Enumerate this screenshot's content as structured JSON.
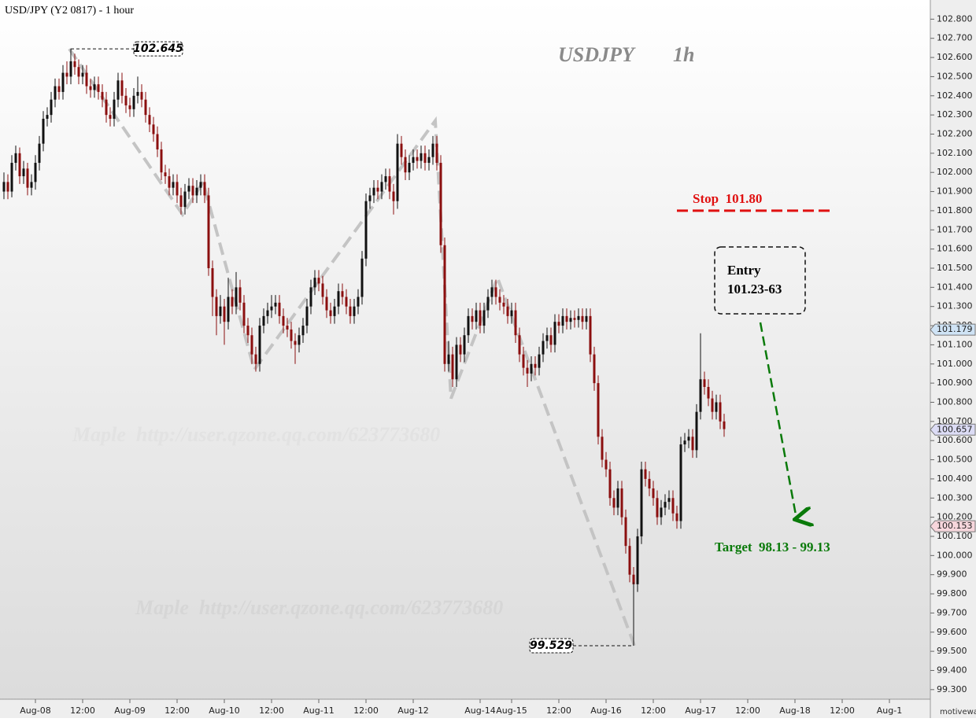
{
  "chart_data": {
    "type": "candlestick",
    "title": "USD/JPY (Y2 0817) - 1 hour",
    "watermark": [
      "USDJPY",
      "1h"
    ],
    "credit": "Maple  http://user.qzone.qq.com/623773680",
    "footer": "motivewave.com",
    "up_color": "#111111",
    "down_color": "#8b0f0f",
    "ylim": [
      99.25,
      102.9
    ],
    "yticks": [
      {
        "value": 99.3,
        "label": "99.300"
      },
      {
        "value": 99.4,
        "label": "99.400"
      },
      {
        "value": 99.5,
        "label": "99.500"
      },
      {
        "value": 99.6,
        "label": "99.600"
      },
      {
        "value": 99.7,
        "label": "99.700"
      },
      {
        "value": 99.8,
        "label": "99.800"
      },
      {
        "value": 99.9,
        "label": "99.900"
      },
      {
        "value": 100.0,
        "label": "100.000"
      },
      {
        "value": 100.1,
        "label": "100.100"
      },
      {
        "value": 100.2,
        "label": "100.200"
      },
      {
        "value": 100.3,
        "label": "100.300"
      },
      {
        "value": 100.4,
        "label": "100.400"
      },
      {
        "value": 100.5,
        "label": "100.500"
      },
      {
        "value": 100.6,
        "label": "100.600"
      },
      {
        "value": 100.7,
        "label": "100.700"
      },
      {
        "value": 100.8,
        "label": "100.800"
      },
      {
        "value": 100.9,
        "label": "100.900"
      },
      {
        "value": 101.0,
        "label": "101.000"
      },
      {
        "value": 101.1,
        "label": "101.100"
      },
      {
        "value": 101.2,
        "label": "101.200"
      },
      {
        "value": 101.3,
        "label": "101.300"
      },
      {
        "value": 101.4,
        "label": "101.400"
      },
      {
        "value": 101.5,
        "label": "101.500"
      },
      {
        "value": 101.6,
        "label": "101.600"
      },
      {
        "value": 101.7,
        "label": "101.700"
      },
      {
        "value": 101.8,
        "label": "101.800"
      },
      {
        "value": 101.9,
        "label": "101.900"
      },
      {
        "value": 102.0,
        "label": "102.000"
      },
      {
        "value": 102.1,
        "label": "102.100"
      },
      {
        "value": 102.2,
        "label": "102.200"
      },
      {
        "value": 102.3,
        "label": "102.300"
      },
      {
        "value": 102.4,
        "label": "102.400"
      },
      {
        "value": 102.5,
        "label": "102.500"
      },
      {
        "value": 102.6,
        "label": "102.600"
      },
      {
        "value": 102.7,
        "label": "102.700"
      },
      {
        "value": 102.8,
        "label": "102.800"
      }
    ],
    "xticks": [
      {
        "value": 8,
        "label": "Aug-08"
      },
      {
        "value": 20,
        "label": "12:00"
      },
      {
        "value": 32,
        "label": "Aug-09"
      },
      {
        "value": 44,
        "label": "12:00"
      },
      {
        "value": 56,
        "label": "Aug-10"
      },
      {
        "value": 68,
        "label": "12:00"
      },
      {
        "value": 80,
        "label": "Aug-11"
      },
      {
        "value": 92,
        "label": "12:00"
      },
      {
        "value": 104,
        "label": "Aug-12"
      },
      {
        "value": 121,
        "label": "Aug-14"
      },
      {
        "value": 129,
        "label": "Aug-15"
      },
      {
        "value": 141,
        "label": "12:00"
      },
      {
        "value": 153,
        "label": "Aug-16"
      },
      {
        "value": 165,
        "label": "12:00"
      },
      {
        "value": 177,
        "label": "Aug-17"
      },
      {
        "value": 189,
        "label": "12:00"
      },
      {
        "value": 201,
        "label": "Aug-18"
      },
      {
        "value": 213,
        "label": "12:00"
      },
      {
        "value": 225,
        "label": "Aug-1"
      }
    ],
    "price_markers": [
      {
        "value": 101.179,
        "color": "#cfe3f5"
      },
      {
        "value": 100.657,
        "color": "#dcdcf5"
      },
      {
        "value": 100.153,
        "color": "#f7d6dc"
      }
    ],
    "wave": {
      "x": [
        16.6,
        45.4,
        50.6,
        63.6,
        109.6,
        113.6,
        125.4,
        160.2
      ],
      "y": [
        102.645,
        101.78,
        101.95,
        100.97,
        102.27,
        100.82,
        101.45,
        99.53
      ],
      "color": "#c4c4c4"
    },
    "stop": {
      "label": "Stop  101.80",
      "value": 101.8,
      "color": "#e01010"
    },
    "entry": [
      "Entry",
      "101.23-63"
    ],
    "target": {
      "label": "Target  98.13 - 99.13",
      "color": "#0a7a0a"
    },
    "ohlc": [
      [
        101.9,
        102.0,
        101.86,
        101.95
      ],
      [
        101.95,
        101.99,
        101.86,
        101.9
      ],
      [
        101.9,
        102.09,
        101.87,
        102.05
      ],
      [
        102.05,
        102.14,
        102.01,
        102.1
      ],
      [
        102.1,
        102.13,
        101.94,
        101.98
      ],
      [
        101.98,
        102.06,
        101.94,
        102.02
      ],
      [
        102.02,
        102.05,
        101.88,
        101.92
      ],
      [
        101.92,
        101.99,
        101.88,
        101.95
      ],
      [
        101.95,
        102.09,
        101.91,
        102.05
      ],
      [
        102.05,
        102.19,
        102.01,
        102.15
      ],
      [
        102.15,
        102.32,
        102.11,
        102.28
      ],
      [
        102.28,
        102.34,
        102.24,
        102.3
      ],
      [
        102.3,
        102.42,
        102.26,
        102.38
      ],
      [
        102.38,
        102.49,
        102.34,
        102.45
      ],
      [
        102.45,
        102.49,
        102.38,
        102.42
      ],
      [
        102.42,
        102.56,
        102.38,
        102.52
      ],
      [
        102.52,
        102.58,
        102.46,
        102.5
      ],
      [
        102.5,
        102.645,
        102.46,
        102.58
      ],
      [
        102.58,
        102.62,
        102.51,
        102.55
      ],
      [
        102.55,
        102.59,
        102.46,
        102.5
      ],
      [
        102.5,
        102.56,
        102.46,
        102.52
      ],
      [
        102.52,
        102.56,
        102.41,
        102.45
      ],
      [
        102.45,
        102.49,
        102.39,
        102.43
      ],
      [
        102.43,
        102.5,
        102.39,
        102.46
      ],
      [
        102.46,
        102.5,
        102.38,
        102.42
      ],
      [
        102.42,
        102.46,
        102.34,
        102.38
      ],
      [
        102.38,
        102.42,
        102.26,
        102.3
      ],
      [
        102.3,
        102.34,
        102.24,
        102.28
      ],
      [
        102.28,
        102.42,
        102.24,
        102.38
      ],
      [
        102.38,
        102.52,
        102.34,
        102.48
      ],
      [
        102.48,
        102.52,
        102.36,
        102.4
      ],
      [
        102.4,
        102.44,
        102.31,
        102.35
      ],
      [
        102.35,
        102.39,
        102.29,
        102.33
      ],
      [
        102.33,
        102.44,
        102.29,
        102.4
      ],
      [
        102.4,
        102.5,
        102.36,
        102.42
      ],
      [
        102.42,
        102.46,
        102.34,
        102.38
      ],
      [
        102.38,
        102.42,
        102.26,
        102.3
      ],
      [
        102.3,
        102.34,
        102.21,
        102.25
      ],
      [
        102.25,
        102.29,
        102.16,
        102.2
      ],
      [
        102.2,
        102.24,
        102.08,
        102.12
      ],
      [
        102.12,
        102.16,
        101.96,
        102.0
      ],
      [
        102.0,
        102.04,
        101.94,
        101.98
      ],
      [
        101.98,
        102.02,
        101.88,
        101.92
      ],
      [
        101.92,
        101.99,
        101.88,
        101.95
      ],
      [
        101.95,
        101.99,
        101.84,
        101.88
      ],
      [
        101.88,
        101.92,
        101.78,
        101.82
      ],
      [
        101.82,
        101.94,
        101.78,
        101.9
      ],
      [
        101.9,
        101.97,
        101.86,
        101.93
      ],
      [
        101.93,
        101.97,
        101.84,
        101.88
      ],
      [
        101.88,
        101.96,
        101.84,
        101.92
      ],
      [
        101.92,
        101.99,
        101.88,
        101.95
      ],
      [
        101.95,
        101.99,
        101.84,
        101.88
      ],
      [
        101.88,
        101.92,
        101.46,
        101.5
      ],
      [
        101.5,
        101.54,
        101.25,
        101.35
      ],
      [
        101.35,
        101.39,
        101.15,
        101.25
      ],
      [
        101.25,
        101.36,
        101.21,
        101.3
      ],
      [
        101.3,
        101.34,
        101.1,
        101.22
      ],
      [
        101.22,
        101.45,
        101.18,
        101.35
      ],
      [
        101.35,
        101.39,
        101.26,
        101.3
      ],
      [
        101.3,
        101.48,
        101.26,
        101.4
      ],
      [
        101.4,
        101.44,
        101.28,
        101.32
      ],
      [
        101.32,
        101.36,
        101.16,
        101.2
      ],
      [
        101.2,
        101.24,
        101.11,
        101.15
      ],
      [
        101.15,
        101.19,
        101.0,
        101.05
      ],
      [
        101.05,
        101.09,
        100.96,
        101.0
      ],
      [
        101.0,
        101.24,
        100.96,
        101.2
      ],
      [
        101.2,
        101.29,
        101.16,
        101.25
      ],
      [
        101.25,
        101.32,
        101.21,
        101.28
      ],
      [
        101.28,
        101.36,
        101.24,
        101.3
      ],
      [
        101.3,
        101.36,
        101.26,
        101.32
      ],
      [
        101.32,
        101.36,
        101.21,
        101.25
      ],
      [
        101.25,
        101.29,
        101.16,
        101.2
      ],
      [
        101.2,
        101.24,
        101.14,
        101.18
      ],
      [
        101.18,
        101.22,
        101.08,
        101.12
      ],
      [
        101.12,
        101.16,
        101.0,
        101.1
      ],
      [
        101.1,
        101.19,
        101.06,
        101.15
      ],
      [
        101.15,
        101.24,
        101.11,
        101.2
      ],
      [
        101.2,
        101.34,
        101.16,
        101.3
      ],
      [
        101.3,
        101.44,
        101.26,
        101.4
      ],
      [
        101.4,
        101.49,
        101.36,
        101.45
      ],
      [
        101.45,
        101.49,
        101.38,
        101.42
      ],
      [
        101.42,
        101.46,
        101.31,
        101.35
      ],
      [
        101.35,
        101.39,
        101.24,
        101.28
      ],
      [
        101.28,
        101.32,
        101.21,
        101.25
      ],
      [
        101.25,
        101.34,
        101.21,
        101.3
      ],
      [
        101.3,
        101.42,
        101.26,
        101.38
      ],
      [
        101.38,
        101.42,
        101.31,
        101.35
      ],
      [
        101.35,
        101.39,
        101.26,
        101.3
      ],
      [
        101.3,
        101.34,
        101.21,
        101.25
      ],
      [
        101.25,
        101.34,
        101.21,
        101.3
      ],
      [
        101.3,
        101.39,
        101.26,
        101.35
      ],
      [
        101.35,
        101.59,
        101.31,
        101.55
      ],
      [
        101.55,
        101.89,
        101.51,
        101.85
      ],
      [
        101.85,
        101.92,
        101.81,
        101.88
      ],
      [
        101.88,
        101.96,
        101.84,
        101.92
      ],
      [
        101.92,
        101.96,
        101.86,
        101.9
      ],
      [
        101.9,
        101.99,
        101.86,
        101.95
      ],
      [
        101.95,
        102.02,
        101.91,
        101.98
      ],
      [
        101.98,
        102.02,
        101.86,
        101.9
      ],
      [
        101.9,
        101.94,
        101.78,
        101.85
      ],
      [
        101.85,
        102.2,
        101.81,
        102.15
      ],
      [
        102.15,
        102.19,
        102.04,
        102.08
      ],
      [
        102.08,
        102.12,
        101.96,
        102.0
      ],
      [
        102.0,
        102.09,
        101.96,
        102.05
      ],
      [
        102.05,
        102.12,
        102.01,
        102.08
      ],
      [
        102.08,
        102.12,
        102.02,
        102.06
      ],
      [
        102.06,
        102.14,
        102.02,
        102.1
      ],
      [
        102.1,
        102.14,
        102.01,
        102.05
      ],
      [
        102.05,
        102.12,
        102.01,
        102.08
      ],
      [
        102.08,
        102.19,
        102.04,
        102.15
      ],
      [
        102.15,
        102.19,
        102.01,
        102.05
      ],
      [
        102.05,
        102.09,
        101.58,
        101.62
      ],
      [
        101.62,
        101.66,
        100.96,
        101.0
      ],
      [
        101.0,
        101.12,
        100.96,
        101.05
      ],
      [
        101.05,
        101.09,
        100.88,
        100.92
      ],
      [
        100.92,
        101.14,
        100.88,
        101.1
      ],
      [
        101.1,
        101.14,
        101.01,
        101.05
      ],
      [
        101.05,
        101.19,
        101.01,
        101.15
      ],
      [
        101.15,
        101.29,
        101.11,
        101.25
      ],
      [
        101.25,
        101.29,
        101.18,
        101.22
      ],
      [
        101.22,
        101.32,
        101.18,
        101.28
      ],
      [
        101.28,
        101.32,
        101.16,
        101.2
      ],
      [
        101.2,
        101.32,
        101.16,
        101.28
      ],
      [
        101.28,
        101.39,
        101.24,
        101.35
      ],
      [
        101.35,
        101.44,
        101.31,
        101.4
      ],
      [
        101.4,
        101.44,
        101.31,
        101.35
      ],
      [
        101.35,
        101.39,
        101.28,
        101.32
      ],
      [
        101.32,
        101.36,
        101.26,
        101.3
      ],
      [
        101.3,
        101.34,
        101.21,
        101.25
      ],
      [
        101.25,
        101.32,
        101.21,
        101.28
      ],
      [
        101.28,
        101.32,
        101.11,
        101.15
      ],
      [
        101.15,
        101.19,
        101.01,
        101.05
      ],
      [
        101.05,
        101.09,
        100.94,
        100.98
      ],
      [
        100.98,
        101.02,
        100.88,
        100.95
      ],
      [
        100.95,
        101.04,
        100.91,
        101.0
      ],
      [
        101.0,
        101.04,
        100.94,
        100.98
      ],
      [
        100.98,
        101.09,
        100.94,
        101.05
      ],
      [
        101.05,
        101.16,
        101.01,
        101.12
      ],
      [
        101.12,
        101.19,
        101.08,
        101.15
      ],
      [
        101.15,
        101.19,
        101.06,
        101.1
      ],
      [
        101.1,
        101.26,
        101.06,
        101.22
      ],
      [
        101.22,
        101.26,
        101.16,
        101.2
      ],
      [
        101.2,
        101.29,
        101.16,
        101.25
      ],
      [
        101.25,
        101.29,
        101.18,
        101.22
      ],
      [
        101.22,
        101.28,
        101.18,
        101.24
      ],
      [
        101.24,
        101.28,
        101.19,
        101.23
      ],
      [
        101.23,
        101.29,
        101.19,
        101.25
      ],
      [
        101.25,
        101.29,
        101.18,
        101.22
      ],
      [
        101.22,
        101.29,
        101.18,
        101.25
      ],
      [
        101.25,
        101.29,
        101.01,
        101.05
      ],
      [
        101.05,
        101.09,
        100.86,
        100.9
      ],
      [
        100.9,
        100.94,
        100.58,
        100.62
      ],
      [
        100.62,
        100.66,
        100.46,
        100.5
      ],
      [
        100.5,
        100.54,
        100.41,
        100.45
      ],
      [
        100.45,
        100.49,
        100.26,
        100.3
      ],
      [
        100.3,
        100.34,
        100.21,
        100.25
      ],
      [
        100.25,
        100.39,
        100.21,
        100.35
      ],
      [
        100.35,
        100.39,
        100.16,
        100.2
      ],
      [
        100.2,
        100.24,
        100.01,
        100.05
      ],
      [
        100.05,
        100.09,
        99.86,
        99.9
      ],
      [
        99.9,
        99.94,
        99.529,
        99.85
      ],
      [
        99.85,
        100.14,
        99.81,
        100.1
      ],
      [
        100.1,
        100.49,
        100.06,
        100.45
      ],
      [
        100.45,
        100.49,
        100.36,
        100.4
      ],
      [
        100.4,
        100.44,
        100.31,
        100.35
      ],
      [
        100.35,
        100.39,
        100.26,
        100.3
      ],
      [
        100.3,
        100.34,
        100.16,
        100.2
      ],
      [
        100.2,
        100.29,
        100.16,
        100.25
      ],
      [
        100.25,
        100.32,
        100.21,
        100.28
      ],
      [
        100.28,
        100.34,
        100.24,
        100.3
      ],
      [
        100.3,
        100.34,
        100.18,
        100.22
      ],
      [
        100.22,
        100.26,
        100.14,
        100.18
      ],
      [
        100.18,
        100.62,
        100.14,
        100.58
      ],
      [
        100.58,
        100.64,
        100.54,
        100.6
      ],
      [
        100.6,
        100.66,
        100.56,
        100.62
      ],
      [
        100.62,
        100.66,
        100.51,
        100.55
      ],
      [
        100.55,
        100.79,
        100.51,
        100.75
      ],
      [
        100.75,
        101.16,
        100.71,
        100.92
      ],
      [
        100.92,
        100.96,
        100.84,
        100.88
      ],
      [
        100.88,
        100.92,
        100.78,
        100.82
      ],
      [
        100.82,
        100.86,
        100.71,
        100.75
      ],
      [
        100.75,
        100.84,
        100.71,
        100.8
      ],
      [
        100.8,
        100.84,
        100.66,
        100.7
      ],
      [
        100.7,
        100.74,
        100.62,
        100.66
      ]
    ]
  }
}
